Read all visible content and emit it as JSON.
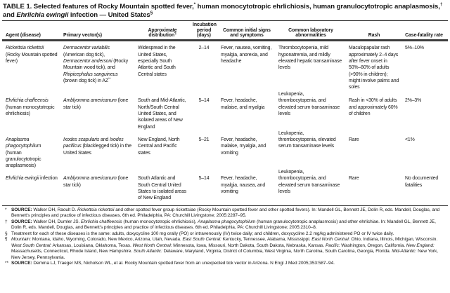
{
  "title": [
    {
      "t": "TABLE 1. Selected features of Rocky Mountain spotted fever,"
    },
    {
      "t": "*",
      "s": "sup"
    },
    {
      "t": " human monocytotropic ehrlichiosis, human granulocytotropic anaplasmosis,"
    },
    {
      "t": "†",
      "s": "sup"
    },
    {
      "t": " and "
    },
    {
      "t": "Ehrlichia ewingii",
      "s": "i"
    },
    {
      "t": " infection — United States"
    },
    {
      "t": "§",
      "s": "sup"
    }
  ],
  "header": {
    "columns": [
      "Agent (disease)",
      "Primary vector(s)",
      [
        {
          "t": "Approximate distribution"
        },
        {
          "t": "¶",
          "s": "sup"
        }
      ],
      "Incubation period (days)",
      "Common initial signs and symptoms",
      "Common laboratory abnormalities",
      "Rash",
      "Case-fatality rate"
    ]
  },
  "rows": [
    {
      "cells": [
        [
          {
            "t": "Rickettsia rickettsii",
            "s": "i"
          },
          {
            "t": " (Rocky Mountain spotted fever)"
          }
        ],
        [
          {
            "t": "Dermacentor variabilis",
            "s": "i"
          },
          {
            "t": " (American dog tick), "
          },
          {
            "t": "Dermacentor andersoni",
            "s": "i"
          },
          {
            "t": " (Rocky Mountain wood tick), and "
          },
          {
            "t": "Rhipicephalus sanguineus",
            "s": "i"
          },
          {
            "t": " (brown dog tick) in AZ"
          },
          {
            "t": "**",
            "s": "sup"
          }
        ],
        "Widespread in the United States, especially South Atlantic and South Central states",
        "2–14",
        "Fever, nausea, vomiting, myalgia, anorexia, and headache",
        "Thrombocytopenia, mild hyponatremia, and mildly elevated hepatic transaminase levels",
        "Maculopapular rash approximately 2–4 days after fever onset in 50%–80% of adults (>90% in children); might involve palms and soles",
        "5%–10%"
      ]
    },
    {
      "cells": [
        [
          {
            "t": "Ehrlichia chaffeensis",
            "s": "i"
          },
          {
            "t": " (human monocytotropic ehrlichiosis)"
          }
        ],
        [
          {
            "t": "Amblyomma americanum",
            "s": "i"
          },
          {
            "t": " (lone star tick)"
          }
        ],
        "South and Mid-Atlantic, North/South Central United States, and isolated areas of New England",
        "5–14",
        "Fever, headache, malaise, and myalgia",
        "Leukopenia, thrombocytopenia, and elevated serum transaminase levels",
        "Rash in <30% of adults and approximately 60% of children",
        "2%–3%"
      ]
    },
    {
      "cells": [
        [
          {
            "t": "Anaplasma phagocytophilum",
            "s": "i"
          },
          {
            "t": " (human granulocytotropic anaplasmosis)"
          }
        ],
        [
          {
            "t": "Ixodes scapularis",
            "s": "i"
          },
          {
            "t": " and "
          },
          {
            "t": "Ixodes pacificus",
            "s": "i"
          },
          {
            "t": " (blacklegged tick) in the United States"
          }
        ],
        "New England, North Central and Pacific states",
        "5–21",
        "Fever, headache, malaise, myalgia, and vomiting",
        "Leukopenia, thrombocytopenia, elevated serum transaminase levels",
        "Rare",
        "<1%"
      ]
    },
    {
      "cells": [
        [
          {
            "t": "Ehrlichia ewingii",
            "s": "i"
          },
          {
            "t": " infection"
          }
        ],
        [
          {
            "t": "Amblyomma americanum",
            "s": "i"
          },
          {
            "t": " (lone star tick)"
          }
        ],
        "South Atlantic and South Central United States to isolated areas of New England",
        "5–14",
        "Fever, headache, myalgia, nausea, and vomiting",
        "Leukopenia, thrombocytopenia, and elevated serum transaminase levels",
        "Rare",
        "No documented fatalities"
      ]
    }
  ],
  "footnotes": [
    {
      "marker": "*",
      "text": [
        {
          "t": "SOURCE:",
          "s": "b"
        },
        {
          "t": " Walker DH, Raoult D. "
        },
        {
          "t": "Rickettsia rickettsii",
          "s": "i"
        },
        {
          "t": " and other spotted fever group rickettsiae (Rocky Mountain spotted fever and other spotted fevers). In: Mandell GL, Bennett JE, Dolin R, eds. Mandell, Douglas, and Bennett's principles and practice of infectious diseases. 6th ed. Philadelphia, PA: Churchill Livingstone; 2005:2287–95."
        }
      ]
    },
    {
      "marker": "†",
      "text": [
        {
          "t": "SOURCE:",
          "s": "b"
        },
        {
          "t": " Walker DH, Dumler JS. "
        },
        {
          "t": "Ehrlichia chaffeensis",
          "s": "i"
        },
        {
          "t": " (human monocytotropic ehrlichiosis), "
        },
        {
          "t": "Anaplasma phagocytophilum",
          "s": "i"
        },
        {
          "t": " (human granulocytotropic anaplasmosis) and other ehrlichiae. In: Mandell GL, Bennett JE, Dolin R, eds. Mandell, Douglas, and Bennett's principles and practice of infectious diseases. 6th ed. Philadelphia, PA: Churchill Livingstone; 2005:2310–8."
        }
      ]
    },
    {
      "marker": "§",
      "text": [
        {
          "t": "Treatment for each of these diseases is the same: adults, doxycycline 100 mg orally (PO) or intravenously (IV) twice daily; and children, doxycycline 2.2 mg/kg administered PO or IV twice daily."
        }
      ]
    },
    {
      "marker": "¶",
      "text": [
        {
          "t": "Mountain:",
          "s": "i"
        },
        {
          "t": " Montana, Idaho, Wyoming, Colorado, New Mexico, Arizona, Utah, Nevada. "
        },
        {
          "t": "East South Central:",
          "s": "i"
        },
        {
          "t": " Kentucky, Tennessee, Alabama, Mississippi. "
        },
        {
          "t": "East North Central:",
          "s": "i"
        },
        {
          "t": " Ohio, Indiana, Illinois, Michigan, Wisconsin. "
        },
        {
          "t": "West South Central:",
          "s": "i"
        },
        {
          "t": " Arkansas, Louisiana, Oklahoma, Texas. "
        },
        {
          "t": "West North Central:",
          "s": "i"
        },
        {
          "t": " Minnesota, Iowa, Missouri, North Dakota, South Dakota, Nebraska, Kansas. "
        },
        {
          "t": "Pacific:",
          "s": "i"
        },
        {
          "t": " Washington, Oregon, California. "
        },
        {
          "t": "New England:",
          "s": "i"
        },
        {
          "t": " Massachusetts, Connecticut, Rhode Island, New Hampshire. "
        },
        {
          "t": "South Atlantic:",
          "s": "i"
        },
        {
          "t": " Delaware, Maryland, Virginia, District of Columbia, West Virginia, North Carolina, South Carolina, Georgia, Florida. "
        },
        {
          "t": "Mid-Atlantic:",
          "s": "i"
        },
        {
          "t": " New York, New Jersey, Pennsylvania."
        }
      ]
    },
    {
      "marker": "**",
      "text": [
        {
          "t": "SOURCE:",
          "s": "b"
        },
        {
          "t": " Demma LJ, Traeger MS, Nicholson WL, et al. Rocky Mountain spotted fever from an unexpected tick vector in Arizona. N Engl J Med 2005;353:587–94."
        }
      ]
    }
  ]
}
